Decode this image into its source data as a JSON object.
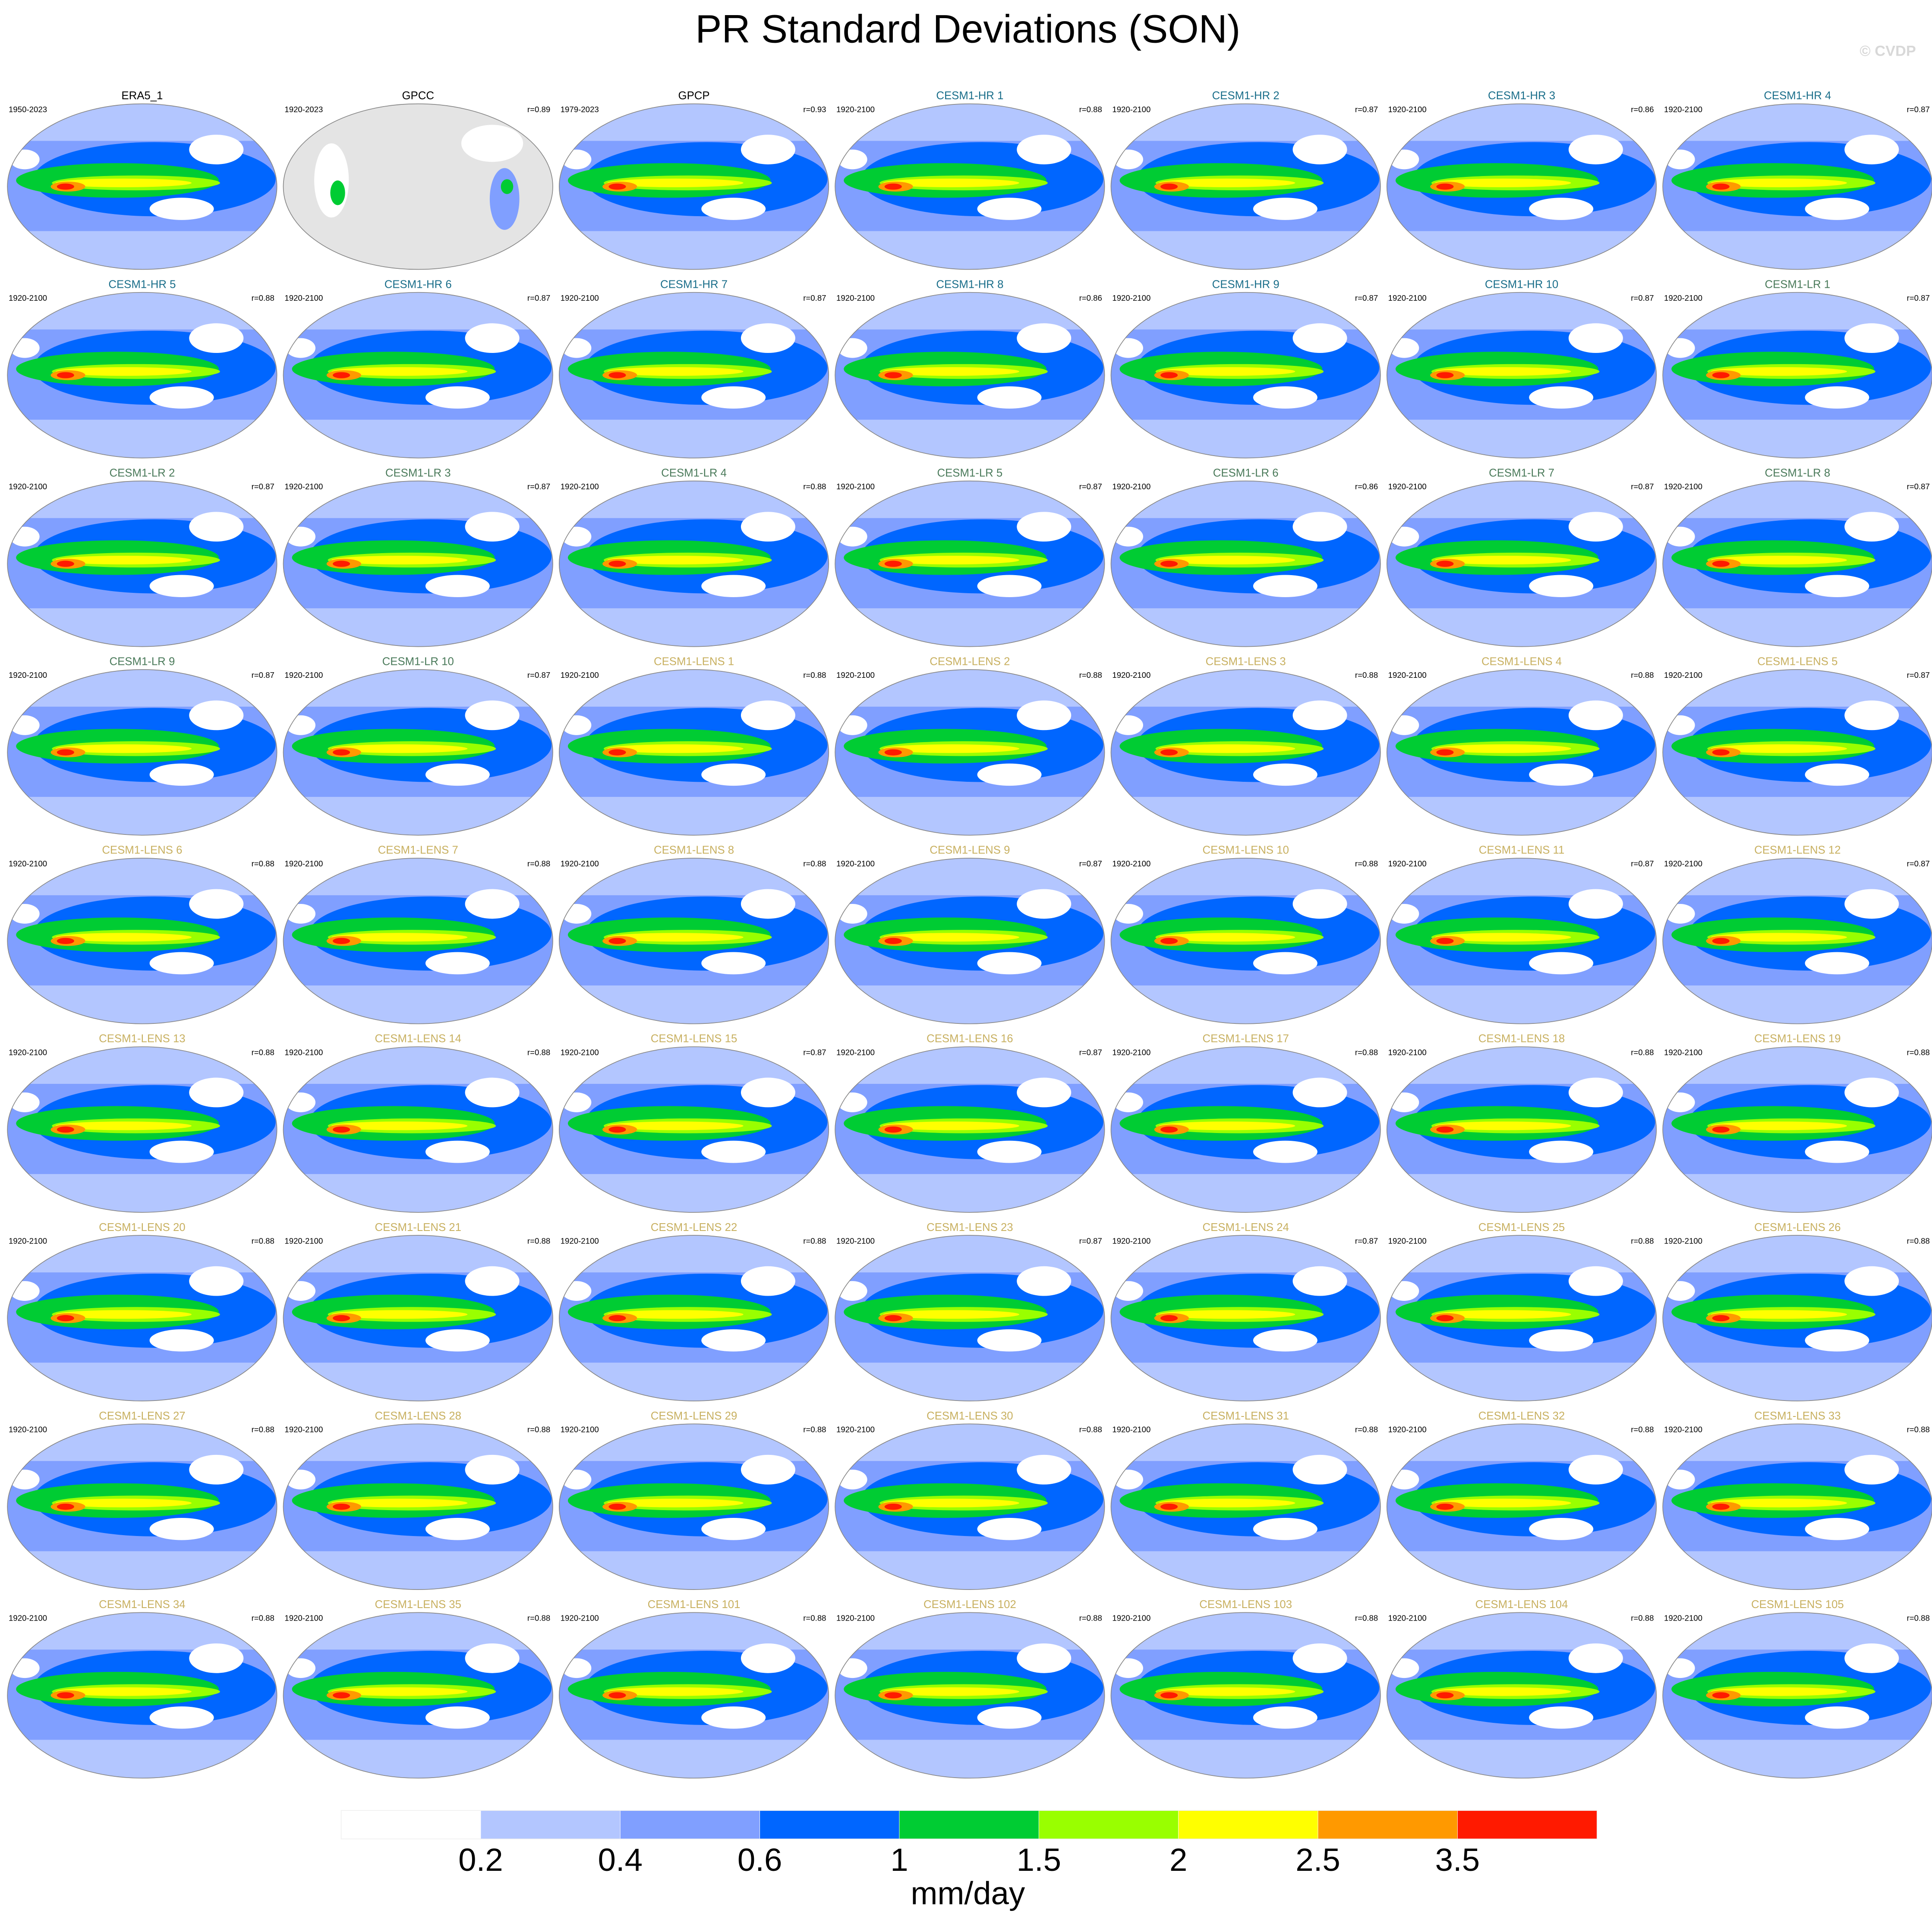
{
  "title": "PR Standard Deviations (SON)",
  "watermark": "© CVDP",
  "panels": [
    {
      "name": "ERA5_1",
      "period": "1950-2023",
      "color": "#000000"
    },
    {
      "name": "GPCC",
      "period": "1920-2023",
      "r": "r=0.89",
      "color": "#000000"
    },
    {
      "name": "GPCP",
      "period": "1979-2023",
      "r": "r=0.93",
      "color": "#000000"
    },
    {
      "name": "CESM1-HR 1",
      "period": "1920-2100",
      "r": "r=0.88",
      "color": "#1a6e8a"
    },
    {
      "name": "CESM1-HR 2",
      "period": "1920-2100",
      "r": "r=0.87",
      "color": "#1a6e8a"
    },
    {
      "name": "CESM1-HR 3",
      "period": "1920-2100",
      "r": "r=0.86",
      "color": "#1a6e8a"
    },
    {
      "name": "CESM1-HR 4",
      "period": "1920-2100",
      "r": "r=0.87",
      "color": "#1a6e8a"
    },
    {
      "name": "CESM1-HR 5",
      "period": "1920-2100",
      "r": "r=0.88",
      "color": "#1a6e8a"
    },
    {
      "name": "CESM1-HR 6",
      "period": "1920-2100",
      "r": "r=0.87",
      "color": "#1a6e8a"
    },
    {
      "name": "CESM1-HR 7",
      "period": "1920-2100",
      "r": "r=0.87",
      "color": "#1a6e8a"
    },
    {
      "name": "CESM1-HR 8",
      "period": "1920-2100",
      "r": "r=0.86",
      "color": "#1a6e8a"
    },
    {
      "name": "CESM1-HR 9",
      "period": "1920-2100",
      "r": "r=0.87",
      "color": "#1a6e8a"
    },
    {
      "name": "CESM1-HR 10",
      "period": "1920-2100",
      "r": "r=0.87",
      "color": "#1a6e8a"
    },
    {
      "name": "CESM1-LR 1",
      "period": "1920-2100",
      "r": "r=0.87",
      "color": "#4a7a5a"
    },
    {
      "name": "CESM1-LR 2",
      "period": "1920-2100",
      "r": "r=0.87",
      "color": "#4a7a5a"
    },
    {
      "name": "CESM1-LR 3",
      "period": "1920-2100",
      "r": "r=0.87",
      "color": "#4a7a5a"
    },
    {
      "name": "CESM1-LR 4",
      "period": "1920-2100",
      "r": "r=0.88",
      "color": "#4a7a5a"
    },
    {
      "name": "CESM1-LR 5",
      "period": "1920-2100",
      "r": "r=0.87",
      "color": "#4a7a5a"
    },
    {
      "name": "CESM1-LR 6",
      "period": "1920-2100",
      "r": "r=0.86",
      "color": "#4a7a5a"
    },
    {
      "name": "CESM1-LR 7",
      "period": "1920-2100",
      "r": "r=0.87",
      "color": "#4a7a5a"
    },
    {
      "name": "CESM1-LR 8",
      "period": "1920-2100",
      "r": "r=0.87",
      "color": "#4a7a5a"
    },
    {
      "name": "CESM1-LR 9",
      "period": "1920-2100",
      "r": "r=0.87",
      "color": "#4a7a5a"
    },
    {
      "name": "CESM1-LR 10",
      "period": "1920-2100",
      "r": "r=0.87",
      "color": "#4a7a5a"
    },
    {
      "name": "CESM1-LENS 1",
      "period": "1920-2100",
      "r": "r=0.88",
      "color": "#c8b060"
    },
    {
      "name": "CESM1-LENS 2",
      "period": "1920-2100",
      "r": "r=0.88",
      "color": "#c8b060"
    },
    {
      "name": "CESM1-LENS 3",
      "period": "1920-2100",
      "r": "r=0.88",
      "color": "#c8b060"
    },
    {
      "name": "CESM1-LENS 4",
      "period": "1920-2100",
      "r": "r=0.88",
      "color": "#c8b060"
    },
    {
      "name": "CESM1-LENS 5",
      "period": "1920-2100",
      "r": "r=0.87",
      "color": "#c8b060"
    },
    {
      "name": "CESM1-LENS 6",
      "period": "1920-2100",
      "r": "r=0.88",
      "color": "#c8b060"
    },
    {
      "name": "CESM1-LENS 7",
      "period": "1920-2100",
      "r": "r=0.88",
      "color": "#c8b060"
    },
    {
      "name": "CESM1-LENS 8",
      "period": "1920-2100",
      "r": "r=0.88",
      "color": "#c8b060"
    },
    {
      "name": "CESM1-LENS 9",
      "period": "1920-2100",
      "r": "r=0.87",
      "color": "#c8b060"
    },
    {
      "name": "CESM1-LENS 10",
      "period": "1920-2100",
      "r": "r=0.88",
      "color": "#c8b060"
    },
    {
      "name": "CESM1-LENS 11",
      "period": "1920-2100",
      "r": "r=0.87",
      "color": "#c8b060"
    },
    {
      "name": "CESM1-LENS 12",
      "period": "1920-2100",
      "r": "r=0.87",
      "color": "#c8b060"
    },
    {
      "name": "CESM1-LENS 13",
      "period": "1920-2100",
      "r": "r=0.88",
      "color": "#c8b060"
    },
    {
      "name": "CESM1-LENS 14",
      "period": "1920-2100",
      "r": "r=0.88",
      "color": "#c8b060"
    },
    {
      "name": "CESM1-LENS 15",
      "period": "1920-2100",
      "r": "r=0.87",
      "color": "#c8b060"
    },
    {
      "name": "CESM1-LENS 16",
      "period": "1920-2100",
      "r": "r=0.87",
      "color": "#c8b060"
    },
    {
      "name": "CESM1-LENS 17",
      "period": "1920-2100",
      "r": "r=0.88",
      "color": "#c8b060"
    },
    {
      "name": "CESM1-LENS 18",
      "period": "1920-2100",
      "r": "r=0.88",
      "color": "#c8b060"
    },
    {
      "name": "CESM1-LENS 19",
      "period": "1920-2100",
      "r": "r=0.88",
      "color": "#c8b060"
    },
    {
      "name": "CESM1-LENS 20",
      "period": "1920-2100",
      "r": "r=0.88",
      "color": "#c8b060"
    },
    {
      "name": "CESM1-LENS 21",
      "period": "1920-2100",
      "r": "r=0.88",
      "color": "#c8b060"
    },
    {
      "name": "CESM1-LENS 22",
      "period": "1920-2100",
      "r": "r=0.88",
      "color": "#c8b060"
    },
    {
      "name": "CESM1-LENS 23",
      "period": "1920-2100",
      "r": "r=0.87",
      "color": "#c8b060"
    },
    {
      "name": "CESM1-LENS 24",
      "period": "1920-2100",
      "r": "r=0.87",
      "color": "#c8b060"
    },
    {
      "name": "CESM1-LENS 25",
      "period": "1920-2100",
      "r": "r=0.88",
      "color": "#c8b060"
    },
    {
      "name": "CESM1-LENS 26",
      "period": "1920-2100",
      "r": "r=0.88",
      "color": "#c8b060"
    },
    {
      "name": "CESM1-LENS 27",
      "period": "1920-2100",
      "r": "r=0.88",
      "color": "#c8b060"
    },
    {
      "name": "CESM1-LENS 28",
      "period": "1920-2100",
      "r": "r=0.88",
      "color": "#c8b060"
    },
    {
      "name": "CESM1-LENS 29",
      "period": "1920-2100",
      "r": "r=0.88",
      "color": "#c8b060"
    },
    {
      "name": "CESM1-LENS 30",
      "period": "1920-2100",
      "r": "r=0.88",
      "color": "#c8b060"
    },
    {
      "name": "CESM1-LENS 31",
      "period": "1920-2100",
      "r": "r=0.88",
      "color": "#c8b060"
    },
    {
      "name": "CESM1-LENS 32",
      "period": "1920-2100",
      "r": "r=0.88",
      "color": "#c8b060"
    },
    {
      "name": "CESM1-LENS 33",
      "period": "1920-2100",
      "r": "r=0.88",
      "color": "#c8b060"
    },
    {
      "name": "CESM1-LENS 34",
      "period": "1920-2100",
      "r": "r=0.88",
      "color": "#c8b060"
    },
    {
      "name": "CESM1-LENS 35",
      "period": "1920-2100",
      "r": "r=0.88",
      "color": "#c8b060"
    },
    {
      "name": "CESM1-LENS 101",
      "period": "1920-2100",
      "r": "r=0.88",
      "color": "#c8b060"
    },
    {
      "name": "CESM1-LENS 102",
      "period": "1920-2100",
      "r": "r=0.88",
      "color": "#c8b060"
    },
    {
      "name": "CESM1-LENS 103",
      "period": "1920-2100",
      "r": "r=0.88",
      "color": "#c8b060"
    },
    {
      "name": "CESM1-LENS 104",
      "period": "1920-2100",
      "r": "r=0.88",
      "color": "#c8b060"
    },
    {
      "name": "CESM1-LENS 105",
      "period": "1920-2100",
      "r": "r=0.88",
      "color": "#c8b060"
    }
  ],
  "colorbar": {
    "levels": [
      0.2,
      0.4,
      0.6,
      1,
      1.5,
      2,
      2.5,
      3.5
    ],
    "colors": [
      "#ffffff",
      "#b3c6ff",
      "#809fff",
      "#0066ff",
      "#00cc33",
      "#99ff00",
      "#ffff00",
      "#ff9900",
      "#ff1a00"
    ],
    "label": "mm/day"
  }
}
